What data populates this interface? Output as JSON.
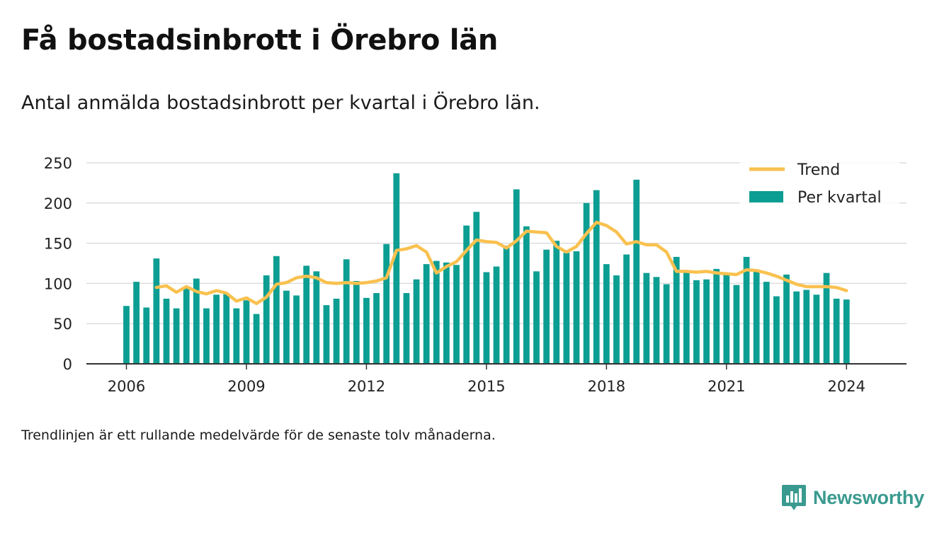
{
  "title": "Få bostadsinbrott i Örebro län",
  "subtitle": "Antal anmälda bostadsinbrott per kvartal i Örebro län.",
  "footnote": "Trendlinjen är ett rullande medelvärde för de senaste tolv månaderna.",
  "brand": {
    "name": "Newsworthy",
    "color": "#3a9a8f"
  },
  "chart_data": {
    "type": "bar",
    "colors": {
      "bars": "#0c9e92",
      "trend": "#f9c14f",
      "grid": "#dddddd",
      "axis": "#333333"
    },
    "legend": {
      "position": "top-right",
      "items": [
        {
          "label": "Trend",
          "kind": "line"
        },
        {
          "label": "Per kvartal",
          "kind": "bar"
        }
      ]
    },
    "ylim": [
      0,
      250
    ],
    "yticks": [
      0,
      50,
      100,
      150,
      200,
      250
    ],
    "xlim": [
      2005.0,
      2025.5
    ],
    "xticks": [
      2006,
      2009,
      2012,
      2015,
      2018,
      2021,
      2024
    ],
    "grid": true,
    "series": [
      {
        "name": "Per kvartal",
        "type": "bar",
        "x": [
          2006.0,
          2006.25,
          2006.5,
          2006.75,
          2007.0,
          2007.25,
          2007.5,
          2007.75,
          2008.0,
          2008.25,
          2008.5,
          2008.75,
          2009.0,
          2009.25,
          2009.5,
          2009.75,
          2010.0,
          2010.25,
          2010.5,
          2010.75,
          2011.0,
          2011.25,
          2011.5,
          2011.75,
          2012.0,
          2012.25,
          2012.5,
          2012.75,
          2013.0,
          2013.25,
          2013.5,
          2013.75,
          2014.0,
          2014.25,
          2014.5,
          2014.75,
          2015.0,
          2015.25,
          2015.5,
          2015.75,
          2016.0,
          2016.25,
          2016.5,
          2016.75,
          2017.0,
          2017.25,
          2017.5,
          2017.75,
          2018.0,
          2018.25,
          2018.5,
          2018.75,
          2019.0,
          2019.25,
          2019.5,
          2019.75,
          2020.0,
          2020.25,
          2020.5,
          2020.75,
          2021.0,
          2021.25,
          2021.5,
          2021.75,
          2022.0,
          2022.25,
          2022.5,
          2022.75,
          2023.0,
          2023.25,
          2023.5,
          2023.75,
          2024.0
        ],
        "values": [
          72,
          102,
          70,
          131,
          81,
          69,
          96,
          106,
          69,
          86,
          87,
          69,
          79,
          62,
          110,
          134,
          91,
          85,
          122,
          115,
          73,
          81,
          130,
          103,
          82,
          88,
          149,
          237,
          88,
          105,
          124,
          128,
          126,
          123,
          172,
          189,
          114,
          121,
          147,
          217,
          171,
          115,
          142,
          153,
          138,
          140,
          200,
          216,
          124,
          110,
          136,
          229,
          113,
          108,
          99,
          133,
          114,
          104,
          105,
          118,
          112,
          98,
          133,
          115,
          102,
          84,
          111,
          90,
          92,
          86,
          113,
          81,
          80
        ]
      },
      {
        "name": "Trend",
        "type": "line",
        "x": [
          2006.75,
          2007.0,
          2007.25,
          2007.5,
          2007.75,
          2008.0,
          2008.25,
          2008.5,
          2008.75,
          2009.0,
          2009.25,
          2009.5,
          2009.75,
          2010.0,
          2010.25,
          2010.5,
          2010.75,
          2011.0,
          2011.25,
          2011.5,
          2011.75,
          2012.0,
          2012.25,
          2012.5,
          2012.75,
          2013.0,
          2013.25,
          2013.5,
          2013.75,
          2014.0,
          2014.25,
          2014.5,
          2014.75,
          2015.0,
          2015.25,
          2015.5,
          2015.75,
          2016.0,
          2016.25,
          2016.5,
          2016.75,
          2017.0,
          2017.25,
          2017.5,
          2017.75,
          2018.0,
          2018.25,
          2018.5,
          2018.75,
          2019.0,
          2019.25,
          2019.5,
          2019.75,
          2020.0,
          2020.25,
          2020.5,
          2020.75,
          2021.0,
          2021.25,
          2021.5,
          2021.75,
          2022.0,
          2022.25,
          2022.5,
          2022.75,
          2023.0,
          2023.25,
          2023.5,
          2023.75,
          2024.0
        ],
        "values": [
          95,
          97,
          89,
          96,
          90,
          87,
          91,
          88,
          78,
          82,
          75,
          83,
          99,
          101,
          107,
          109,
          107,
          101,
          100,
          101,
          100,
          101,
          103,
          107,
          141,
          143,
          147,
          139,
          113,
          121,
          127,
          141,
          154,
          152,
          151,
          144,
          153,
          165,
          164,
          163,
          146,
          139,
          146,
          162,
          176,
          172,
          164,
          149,
          152,
          148,
          148,
          139,
          115,
          115,
          114,
          115,
          113,
          112,
          111,
          117,
          116,
          113,
          109,
          104,
          99,
          96,
          96,
          96,
          95,
          91
        ]
      }
    ]
  }
}
